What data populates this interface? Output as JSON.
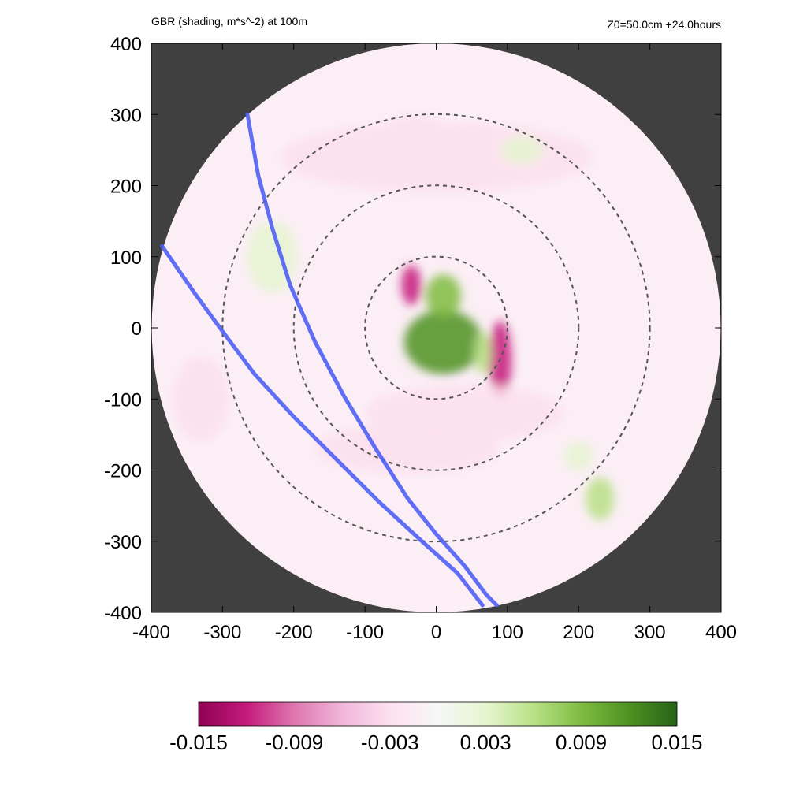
{
  "chart_data": {
    "type": "heatmap",
    "title_left": "GBR (shading, m*s^-2) at 100m",
    "title_right": "Z0=50.0cm  +24.0hours",
    "xlabel": "",
    "ylabel": "",
    "xlim": [
      -400,
      400
    ],
    "ylim": [
      -400,
      400
    ],
    "x_ticks": [
      "-400",
      "-300",
      "-200",
      "-100",
      "0",
      "100",
      "200",
      "300",
      "400"
    ],
    "y_ticks": [
      "400",
      "300",
      "200",
      "100",
      "0",
      "-100",
      "-200",
      "-300",
      "-400"
    ],
    "domain_radius": 400,
    "range_rings": [
      100,
      200,
      300
    ],
    "colorbar": {
      "min": -0.015,
      "max": 0.015,
      "tick_labels": [
        "-0.015",
        "-0.009",
        "-0.003",
        "0.003",
        "0.009",
        "0.015"
      ],
      "colors": [
        "#8e0152",
        "#c51b7d",
        "#de77ae",
        "#f1b6da",
        "#fde0ef",
        "#f7f7f7",
        "#e6f5d0",
        "#b8e186",
        "#7fbc41",
        "#4d9221",
        "#276419"
      ]
    },
    "tracks": [
      {
        "color": "#4f5ef5",
        "points": [
          [
            -265,
            300
          ],
          [
            -250,
            215
          ],
          [
            -230,
            140
          ],
          [
            -205,
            60
          ],
          [
            -170,
            -20
          ],
          [
            -130,
            -95
          ],
          [
            -85,
            -170
          ],
          [
            -40,
            -240
          ],
          [
            0,
            -290
          ],
          [
            40,
            -335
          ],
          [
            70,
            -375
          ],
          [
            85,
            -390
          ]
        ]
      },
      {
        "color": "#4f5ef5",
        "points": [
          [
            -385,
            115
          ],
          [
            -340,
            50
          ],
          [
            -300,
            -5
          ],
          [
            -255,
            -65
          ],
          [
            -200,
            -125
          ],
          [
            -140,
            -185
          ],
          [
            -80,
            -245
          ],
          [
            -20,
            -300
          ],
          [
            30,
            -345
          ],
          [
            65,
            -390
          ]
        ]
      }
    ],
    "features": [
      {
        "x": 10,
        "y": -20,
        "value": 0.011,
        "rx": 55,
        "ry": 45
      },
      {
        "x": 10,
        "y": 45,
        "value": 0.009,
        "rx": 25,
        "ry": 30
      },
      {
        "x": -35,
        "y": 60,
        "value": -0.013,
        "rx": 14,
        "ry": 28
      },
      {
        "x": 90,
        "y": -45,
        "value": -0.012,
        "rx": 16,
        "ry": 55
      },
      {
        "x": 65,
        "y": -35,
        "value": 0.007,
        "rx": 12,
        "ry": 30
      },
      {
        "x": 40,
        "y": -120,
        "value": -0.004,
        "rx": 140,
        "ry": 40
      },
      {
        "x": -40,
        "y": -170,
        "value": -0.003,
        "rx": 130,
        "ry": 35
      },
      {
        "x": 0,
        "y": 240,
        "value": -0.002,
        "rx": 220,
        "ry": 50
      },
      {
        "x": 230,
        "y": -240,
        "value": 0.006,
        "rx": 20,
        "ry": 30
      },
      {
        "x": 200,
        "y": -180,
        "value": 0.004,
        "rx": 20,
        "ry": 20
      },
      {
        "x": -230,
        "y": 100,
        "value": 0.003,
        "rx": 35,
        "ry": 50
      },
      {
        "x": 120,
        "y": 250,
        "value": 0.003,
        "rx": 30,
        "ry": 20
      },
      {
        "x": -330,
        "y": -100,
        "value": -0.002,
        "rx": 40,
        "ry": 60
      },
      {
        "x": -30,
        "y": 290,
        "value": -0.004,
        "rx": 30,
        "ry": 10
      }
    ]
  }
}
